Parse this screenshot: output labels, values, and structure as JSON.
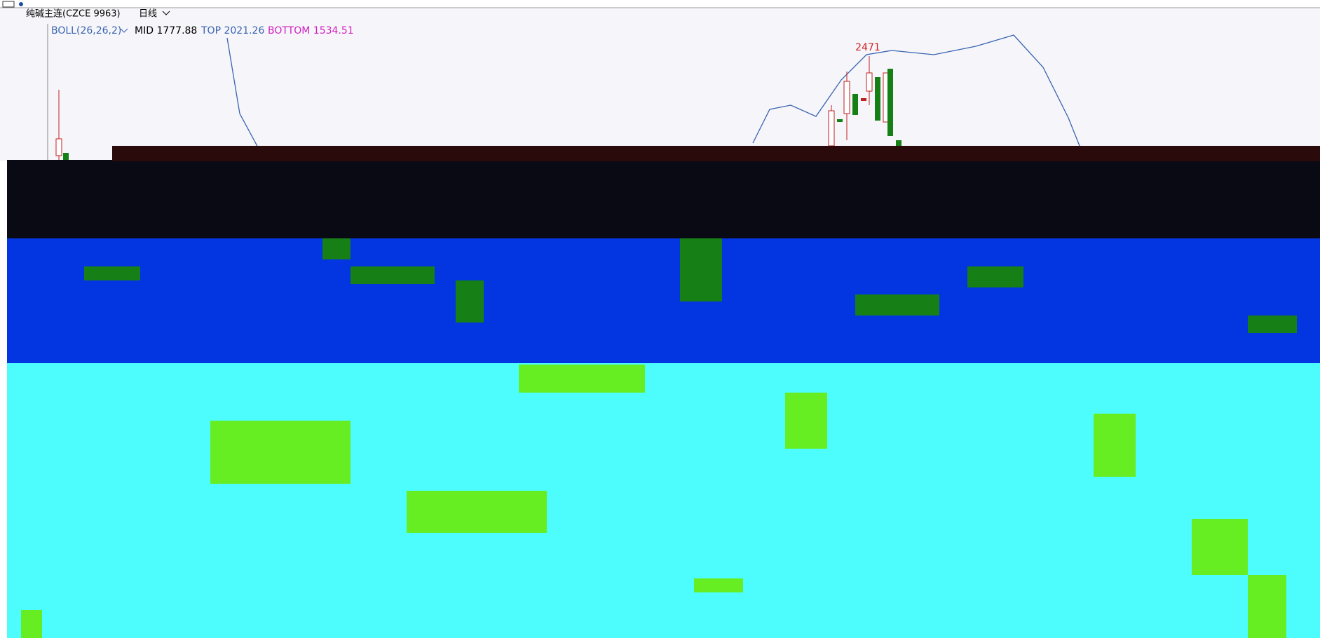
{
  "header": {
    "symbol": "纯碱主连(CZCE 9963)",
    "period": "日线"
  },
  "indicator": {
    "name": "BOLL(26,26,2)",
    "mid": "MID 1777.88",
    "top": "TOP 2021.26",
    "bottom": "BOTTOM 1534.51"
  },
  "annotation": "2471"
}
